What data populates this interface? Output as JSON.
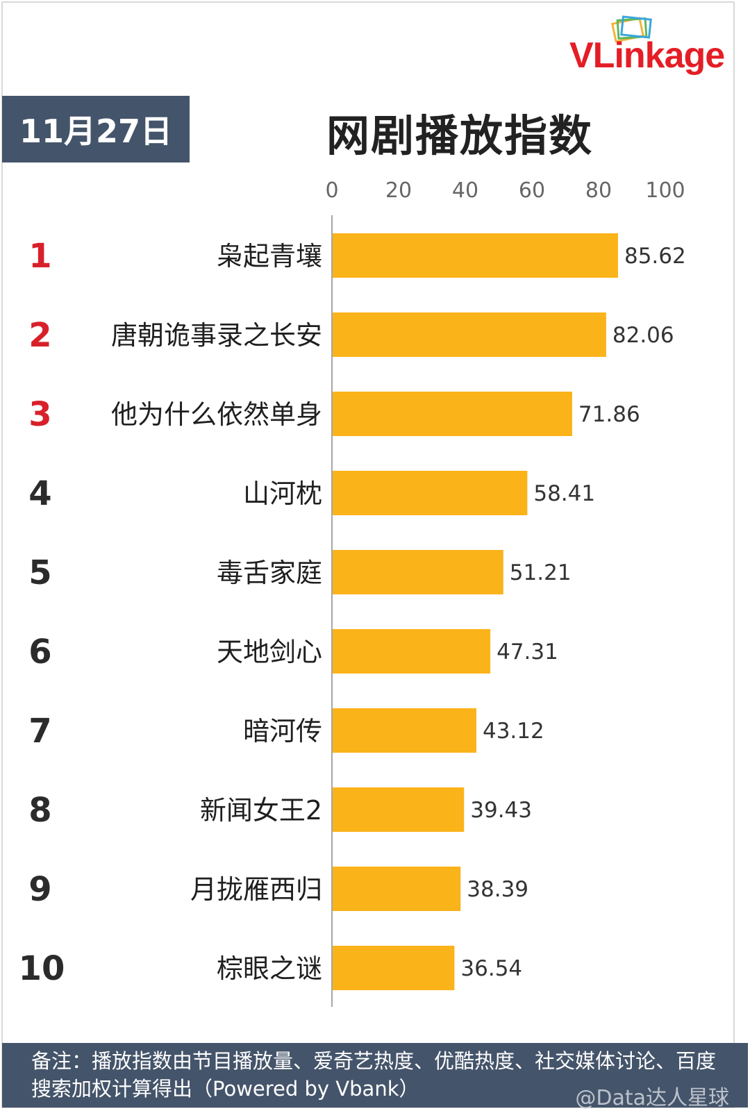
{
  "header": {
    "brand": "VLinkage",
    "date": "11月27日",
    "title": "网剧播放指数"
  },
  "footer": {
    "note": "备注：播放指数由节目播放量、爱奇艺热度、优酷热度、社交媒体讨论、百度搜索加权计算得出（Powered by Vbank）",
    "watermark": "@Data达人星球"
  },
  "colors": {
    "bar": "#fbb31a",
    "rank_top": "#d8202a",
    "rank_other": "#2b2b2b",
    "banner": "#44546a"
  },
  "chart_data": {
    "type": "bar",
    "orientation": "horizontal",
    "title": "网剧播放指数",
    "ranks": [
      "1",
      "2",
      "3",
      "4",
      "5",
      "6",
      "7",
      "8",
      "9",
      "10"
    ],
    "categories": [
      "枭起青壤",
      "唐朝诡事录之长安",
      "他为什么依然单身",
      "山河枕",
      "毒舌家庭",
      "天地剑心",
      "暗河传",
      "新闻女王2",
      "月拢雁西归",
      "棕眼之谜"
    ],
    "values": [
      85.62,
      82.06,
      71.86,
      58.41,
      51.21,
      47.31,
      43.12,
      39.43,
      38.39,
      36.54
    ],
    "value_labels": [
      "85.62",
      "82.06",
      "71.86",
      "58.41",
      "51.21",
      "47.31",
      "43.12",
      "39.43",
      "38.39",
      "36.54"
    ],
    "xlim": [
      0,
      100
    ],
    "xticks": [
      "0",
      "20",
      "40",
      "60",
      "80",
      "100"
    ],
    "axis_position": "top",
    "grid": false,
    "legend": "none"
  }
}
